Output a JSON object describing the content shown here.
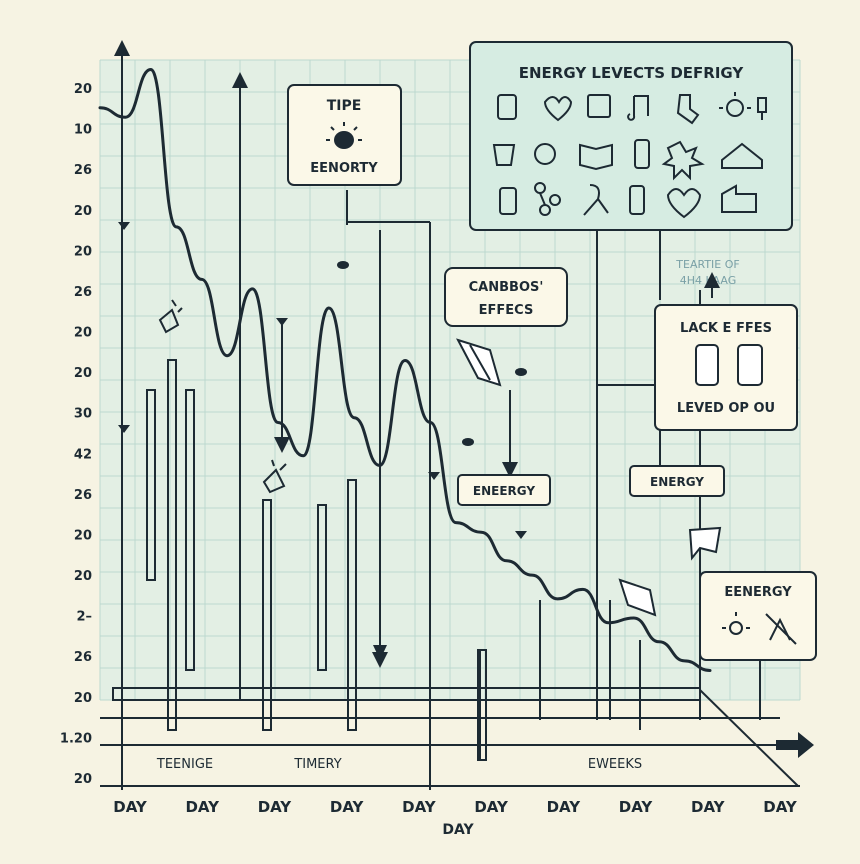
{
  "chart_data": {
    "type": "line",
    "title": "",
    "y_tick_labels": [
      "20",
      "10",
      "26",
      "20",
      "20",
      "26",
      "20",
      "20",
      "30",
      "42",
      "26",
      "20",
      "20",
      "2–",
      "26",
      "20",
      "1.20",
      "20"
    ],
    "x_tick_labels": [
      "DAY",
      "DAY",
      "DAY",
      "DAY",
      "DAY",
      "DAY",
      "DAY",
      "DAY",
      "DAY",
      "DAY"
    ],
    "x_sub_label": "DAY",
    "series": [
      {
        "values": [
          120,
          118,
          128,
          95,
          84,
          68,
          82,
          54,
          47,
          78,
          55,
          45,
          67,
          54,
          33,
          31,
          25,
          22,
          17,
          19,
          12,
          13,
          8,
          4,
          2
        ]
      }
    ],
    "annotations": {
      "legend_title": "ENERGY LEVECTS DEFRIGY",
      "tipe_box": {
        "line1": "TIPE",
        "line2": "EENORTY"
      },
      "effects_box": {
        "line1": "CANBBOS'",
        "line2": "EFFECS"
      },
      "lack_box": {
        "line1": "LACK E FFES",
        "line2": "LEVED OP OU"
      },
      "faint_label": {
        "line1": "TEARTIE OF",
        "line2": "4H4 KAAG"
      },
      "energy_tag_1": "ENEERGY",
      "energy_tag_2": "ENERGY",
      "energy_box_3": "EENERGY",
      "band_labels": [
        "TEENIGE",
        "TIMERY",
        "EWEEKS"
      ]
    },
    "colors": {
      "line": "#1d2a33",
      "grid": "#bcd8cf",
      "panel_bg": "#d6ece2",
      "background": "#f6f3e3"
    },
    "grid": true
  }
}
